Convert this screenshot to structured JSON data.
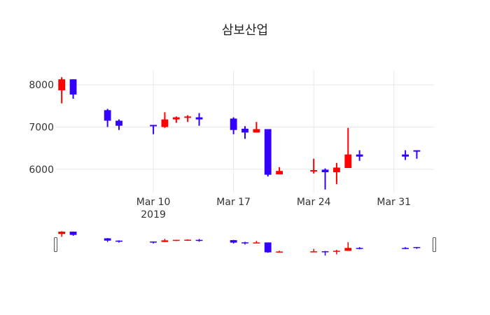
{
  "chart_data": {
    "type": "candlestick",
    "title": "삼보산업",
    "increasing_color": "#ff0000",
    "decreasing_color": "#3300ff",
    "ylim": [
      5450,
      8350
    ],
    "yticks": [
      8000,
      7000,
      6000
    ],
    "yticklabels": [
      "8000",
      "7000",
      "6000"
    ],
    "xlim": [
      "2019-03-01T12:00",
      "2019-04-03T12:00"
    ],
    "xticks": [
      {
        "date": "2019-03-10",
        "label": "Mar 10",
        "sublabel": "2019"
      },
      {
        "date": "2019-03-17",
        "label": "Mar 17",
        "sublabel": ""
      },
      {
        "date": "2019-03-24",
        "label": "Mar 24",
        "sublabel": ""
      },
      {
        "date": "2019-03-31",
        "label": "Mar 31",
        "sublabel": ""
      }
    ],
    "grid": true,
    "rangeslider": true,
    "ohlc": [
      {
        "date": "2019-03-02",
        "open": 7870,
        "high": 8180,
        "low": 7560,
        "close": 8130
      },
      {
        "date": "2019-03-03",
        "open": 8130,
        "high": 8130,
        "low": 7670,
        "close": 7770
      },
      {
        "date": "2019-03-06",
        "open": 7400,
        "high": 7430,
        "low": 7000,
        "close": 7150
      },
      {
        "date": "2019-03-07",
        "open": 7150,
        "high": 7180,
        "low": 6930,
        "close": 7030
      },
      {
        "date": "2019-03-10",
        "open": 7050,
        "high": 7050,
        "low": 6830,
        "close": 7020
      },
      {
        "date": "2019-03-11",
        "open": 7000,
        "high": 7350,
        "low": 6980,
        "close": 7180
      },
      {
        "date": "2019-03-12",
        "open": 7180,
        "high": 7250,
        "low": 7100,
        "close": 7230
      },
      {
        "date": "2019-03-13",
        "open": 7220,
        "high": 7280,
        "low": 7120,
        "close": 7250
      },
      {
        "date": "2019-03-14",
        "open": 7230,
        "high": 7330,
        "low": 7030,
        "close": 7180
      },
      {
        "date": "2019-03-17",
        "open": 7200,
        "high": 7230,
        "low": 6830,
        "close": 6930
      },
      {
        "date": "2019-03-18",
        "open": 6960,
        "high": 7020,
        "low": 6720,
        "close": 6870
      },
      {
        "date": "2019-03-19",
        "open": 6870,
        "high": 7120,
        "low": 6870,
        "close": 6950
      },
      {
        "date": "2019-03-20",
        "open": 6950,
        "high": 6950,
        "low": 5830,
        "close": 5870
      },
      {
        "date": "2019-03-21",
        "open": 5880,
        "high": 6050,
        "low": 5880,
        "close": 5960
      },
      {
        "date": "2019-03-24",
        "open": 5960,
        "high": 6250,
        "low": 5900,
        "close": 5980
      },
      {
        "date": "2019-03-25",
        "open": 5990,
        "high": 6020,
        "low": 5520,
        "close": 5930
      },
      {
        "date": "2019-03-26",
        "open": 5930,
        "high": 6150,
        "low": 5650,
        "close": 6040
      },
      {
        "date": "2019-03-27",
        "open": 6030,
        "high": 6980,
        "low": 6030,
        "close": 6350
      },
      {
        "date": "2019-03-28",
        "open": 6350,
        "high": 6450,
        "low": 6200,
        "close": 6300
      },
      {
        "date": "2019-04-01",
        "open": 6350,
        "high": 6450,
        "low": 6220,
        "close": 6300
      },
      {
        "date": "2019-04-02",
        "open": 6450,
        "high": 6450,
        "low": 6250,
        "close": 6420
      }
    ]
  }
}
